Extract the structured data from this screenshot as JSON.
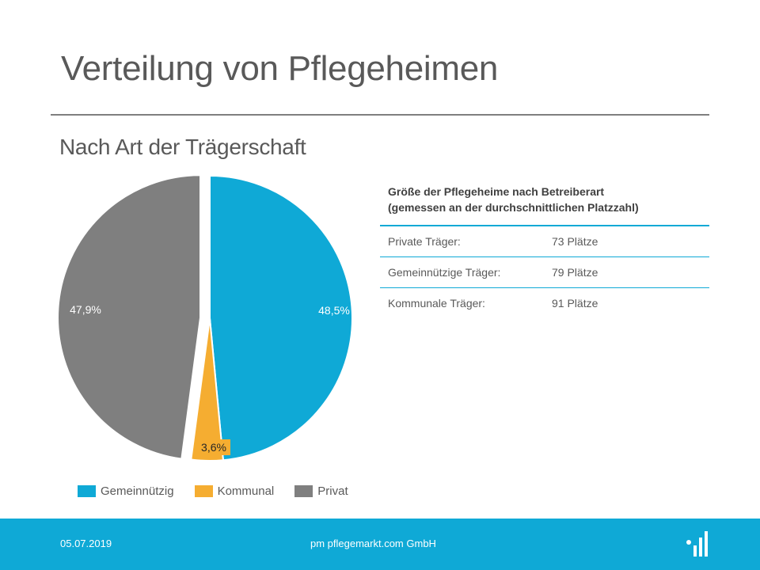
{
  "slide": {
    "title": "Verteilung von Pflegeheimen",
    "subtitle": "Nach Art der Trägerschaft"
  },
  "chart_data": {
    "type": "pie",
    "title": "",
    "slices": [
      {
        "name": "Gemeinnützig",
        "value": 48.5,
        "label": "48,5%",
        "color": "#0fa9d6"
      },
      {
        "name": "Kommunal",
        "value": 3.6,
        "label": "3,6%",
        "color": "#f5ad31"
      },
      {
        "name": "Privat",
        "value": 47.9,
        "label": "47,9%",
        "color": "#7f7f7f"
      }
    ],
    "legend_position": "bottom"
  },
  "table": {
    "header_line1": "Größe der Pflegeheime nach Betreiberart",
    "header_line2": "(gemessen an der durchschnittlichen Platzzahl)",
    "rows": [
      {
        "label": "Private Träger:",
        "value": "73 Plätze"
      },
      {
        "label": "Gemeinnützige Träger:",
        "value": "79 Plätze"
      },
      {
        "label": "Kommunale Träger:",
        "value": "91 Plätze"
      }
    ]
  },
  "footer": {
    "date": "05.07.2019",
    "company": "pm pflegemarkt.com GmbH",
    "logo_icon": "pflegemarkt-logo-icon",
    "background": "#0fa9d6"
  }
}
